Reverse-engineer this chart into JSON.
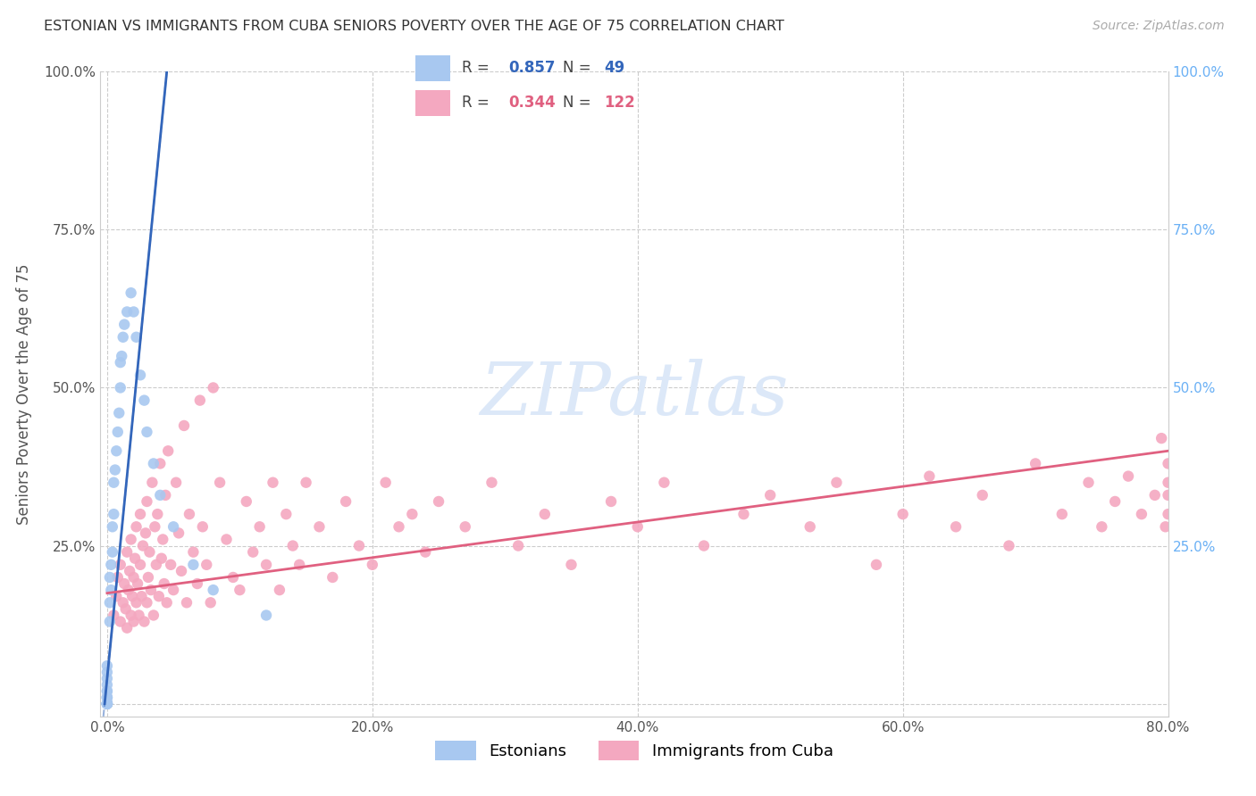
{
  "title": "ESTONIAN VS IMMIGRANTS FROM CUBA SENIORS POVERTY OVER THE AGE OF 75 CORRELATION CHART",
  "source": "Source: ZipAtlas.com",
  "ylabel": "Seniors Poverty Over the Age of 75",
  "xlim": [
    -0.005,
    0.8
  ],
  "ylim": [
    -0.02,
    1.0
  ],
  "xticks": [
    0.0,
    0.2,
    0.4,
    0.6,
    0.8
  ],
  "xticklabels": [
    "0.0%",
    "20.0%",
    "40.0%",
    "60.0%",
    "80.0%"
  ],
  "yticks": [
    0.0,
    0.25,
    0.5,
    0.75,
    1.0
  ],
  "yticklabels_left": [
    "",
    "25.0%",
    "50.0%",
    "75.0%",
    "100.0%"
  ],
  "yticklabels_right": [
    "",
    "25.0%",
    "50.0%",
    "75.0%",
    "100.0%"
  ],
  "blue_color": "#a8c8f0",
  "pink_color": "#f4a8c0",
  "blue_line_color": "#3366bb",
  "pink_line_color": "#e06080",
  "watermark_color": "#dce8f8",
  "blue_scatter_x": [
    0.0,
    0.0,
    0.0,
    0.0,
    0.0,
    0.0,
    0.0,
    0.0,
    0.0,
    0.0,
    0.0,
    0.0,
    0.0,
    0.0,
    0.0,
    0.0,
    0.0,
    0.0,
    0.002,
    0.002,
    0.002,
    0.003,
    0.003,
    0.004,
    0.004,
    0.005,
    0.005,
    0.006,
    0.007,
    0.008,
    0.009,
    0.01,
    0.01,
    0.011,
    0.012,
    0.013,
    0.015,
    0.018,
    0.02,
    0.022,
    0.025,
    0.028,
    0.03,
    0.035,
    0.04,
    0.05,
    0.065,
    0.08,
    0.12
  ],
  "blue_scatter_y": [
    0.0,
    0.0,
    0.0,
    0.0,
    0.0,
    0.0,
    0.0,
    0.0,
    0.0,
    0.01,
    0.01,
    0.01,
    0.02,
    0.02,
    0.03,
    0.04,
    0.05,
    0.06,
    0.13,
    0.16,
    0.2,
    0.18,
    0.22,
    0.24,
    0.28,
    0.3,
    0.35,
    0.37,
    0.4,
    0.43,
    0.46,
    0.5,
    0.54,
    0.55,
    0.58,
    0.6,
    0.62,
    0.65,
    0.62,
    0.58,
    0.52,
    0.48,
    0.43,
    0.38,
    0.33,
    0.28,
    0.22,
    0.18,
    0.14
  ],
  "blue_line_x0": 0.0,
  "blue_line_y0": 0.04,
  "blue_line_x1": 0.045,
  "blue_line_y1": 1.0,
  "blue_line_dash_x0": -0.005,
  "blue_line_dash_x1": 0.005,
  "pink_line_x0": 0.0,
  "pink_line_y0": 0.175,
  "pink_line_x1": 0.8,
  "pink_line_y1": 0.4,
  "pink_scatter_x": [
    0.005,
    0.007,
    0.008,
    0.01,
    0.01,
    0.012,
    0.013,
    0.014,
    0.015,
    0.015,
    0.016,
    0.017,
    0.018,
    0.018,
    0.019,
    0.02,
    0.02,
    0.021,
    0.022,
    0.022,
    0.023,
    0.024,
    0.025,
    0.025,
    0.026,
    0.027,
    0.028,
    0.029,
    0.03,
    0.03,
    0.031,
    0.032,
    0.033,
    0.034,
    0.035,
    0.036,
    0.037,
    0.038,
    0.039,
    0.04,
    0.041,
    0.042,
    0.043,
    0.044,
    0.045,
    0.046,
    0.048,
    0.05,
    0.052,
    0.054,
    0.056,
    0.058,
    0.06,
    0.062,
    0.065,
    0.068,
    0.07,
    0.072,
    0.075,
    0.078,
    0.08,
    0.085,
    0.09,
    0.095,
    0.1,
    0.105,
    0.11,
    0.115,
    0.12,
    0.125,
    0.13,
    0.135,
    0.14,
    0.145,
    0.15,
    0.16,
    0.17,
    0.18,
    0.19,
    0.2,
    0.21,
    0.22,
    0.23,
    0.24,
    0.25,
    0.27,
    0.29,
    0.31,
    0.33,
    0.35,
    0.38,
    0.4,
    0.42,
    0.45,
    0.48,
    0.5,
    0.53,
    0.55,
    0.58,
    0.6,
    0.62,
    0.64,
    0.66,
    0.68,
    0.7,
    0.72,
    0.74,
    0.75,
    0.76,
    0.77,
    0.78,
    0.79,
    0.795,
    0.798,
    0.8,
    0.8,
    0.8,
    0.8
  ],
  "pink_scatter_y": [
    0.14,
    0.17,
    0.2,
    0.13,
    0.22,
    0.16,
    0.19,
    0.15,
    0.12,
    0.24,
    0.18,
    0.21,
    0.14,
    0.26,
    0.17,
    0.13,
    0.2,
    0.23,
    0.16,
    0.28,
    0.19,
    0.14,
    0.22,
    0.3,
    0.17,
    0.25,
    0.13,
    0.27,
    0.16,
    0.32,
    0.2,
    0.24,
    0.18,
    0.35,
    0.14,
    0.28,
    0.22,
    0.3,
    0.17,
    0.38,
    0.23,
    0.26,
    0.19,
    0.33,
    0.16,
    0.4,
    0.22,
    0.18,
    0.35,
    0.27,
    0.21,
    0.44,
    0.16,
    0.3,
    0.24,
    0.19,
    0.48,
    0.28,
    0.22,
    0.16,
    0.5,
    0.35,
    0.26,
    0.2,
    0.18,
    0.32,
    0.24,
    0.28,
    0.22,
    0.35,
    0.18,
    0.3,
    0.25,
    0.22,
    0.35,
    0.28,
    0.2,
    0.32,
    0.25,
    0.22,
    0.35,
    0.28,
    0.3,
    0.24,
    0.32,
    0.28,
    0.35,
    0.25,
    0.3,
    0.22,
    0.32,
    0.28,
    0.35,
    0.25,
    0.3,
    0.33,
    0.28,
    0.35,
    0.22,
    0.3,
    0.36,
    0.28,
    0.33,
    0.25,
    0.38,
    0.3,
    0.35,
    0.28,
    0.32,
    0.36,
    0.3,
    0.33,
    0.42,
    0.28,
    0.35,
    0.3,
    0.38,
    0.33
  ]
}
